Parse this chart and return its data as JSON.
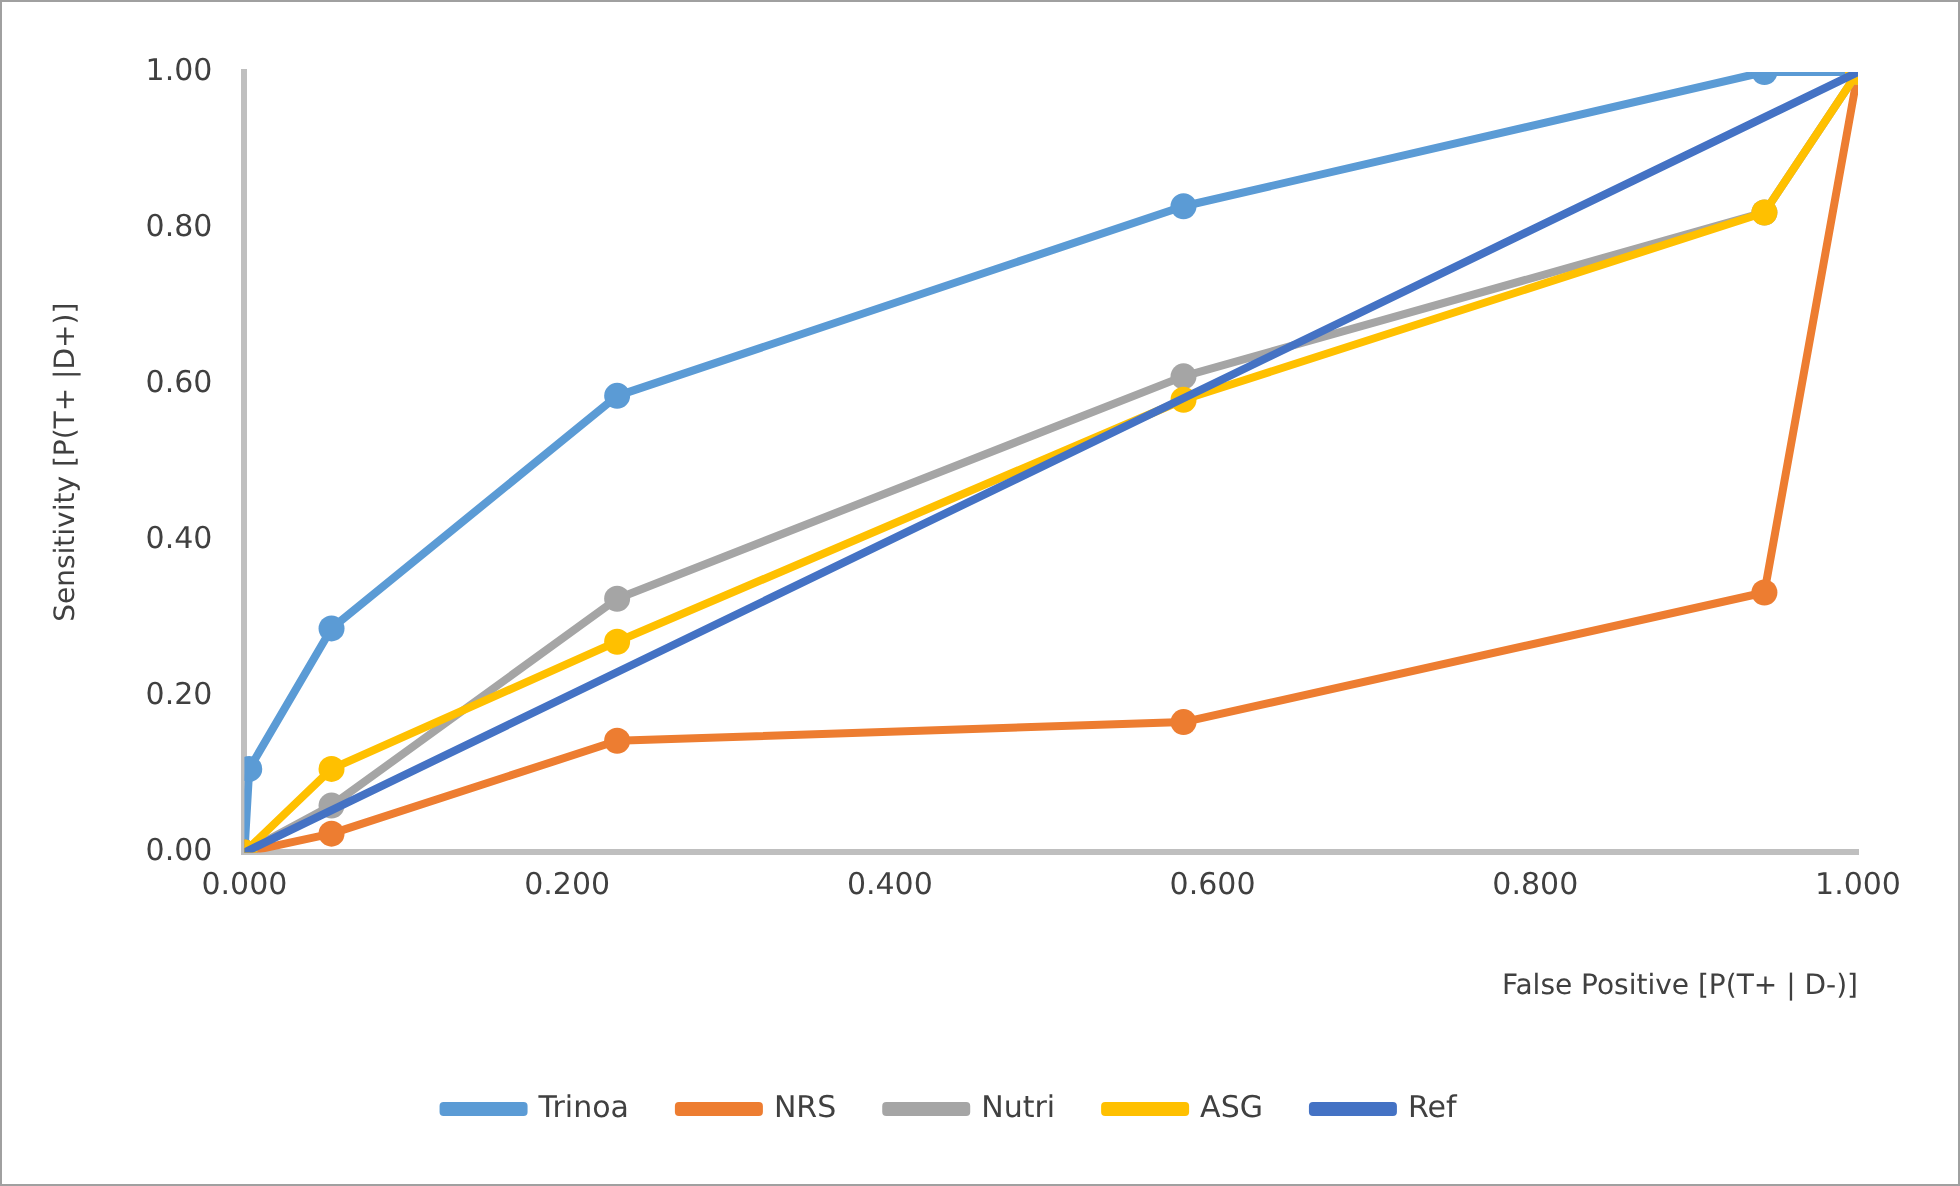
{
  "chart_data": {
    "type": "line",
    "xlabel": "False Positive [P(T+ | D-)]",
    "ylabel": "Sensitivity [P(T+ |D+)]",
    "xlim": [
      0,
      1
    ],
    "xticks": [
      {
        "value": 0,
        "label": "0.000"
      },
      {
        "value": 0.2,
        "label": "0.200"
      },
      {
        "value": 0.4,
        "label": "0.400"
      },
      {
        "value": 0.6,
        "label": "0.600"
      },
      {
        "value": 0.8,
        "label": "0.800"
      },
      {
        "value": 1,
        "label": "1.000"
      }
    ],
    "ylim": [
      0,
      1
    ],
    "yticks": [
      {
        "value": 0,
        "label": "0.00"
      },
      {
        "value": 0.2,
        "label": "0.20"
      },
      {
        "value": 0.4,
        "label": "0.40"
      },
      {
        "value": 0.6,
        "label": "0.60"
      },
      {
        "value": 0.8,
        "label": "0.80"
      },
      {
        "value": 1,
        "label": "1.00"
      }
    ],
    "grid": false,
    "legend": "bottom",
    "marker": "circle",
    "line_style": "solid",
    "series": [
      {
        "name": "Trinoa",
        "color": "#5b9bd5",
        "x": [
          0,
          0.003,
          0.054,
          0.231,
          0.582,
          0.942,
          1
        ],
        "values": [
          0,
          0.107,
          0.287,
          0.585,
          0.828,
          1,
          1
        ]
      },
      {
        "name": "NRS",
        "color": "#ed7d31",
        "x": [
          0,
          0.054,
          0.231,
          0.582,
          0.942,
          1
        ],
        "values": [
          0,
          0.024,
          0.143,
          0.167,
          0.333,
          1
        ]
      },
      {
        "name": "Nutri",
        "color": "#a5a5a5",
        "x": [
          0,
          0.054,
          0.231,
          0.582,
          0.942,
          1
        ],
        "values": [
          0,
          0.06,
          0.325,
          0.61,
          0.82,
          1
        ]
      },
      {
        "name": "ASG",
        "color": "#ffc000",
        "x": [
          0,
          0.054,
          0.231,
          0.582,
          0.942,
          1
        ],
        "values": [
          0,
          0.107,
          0.27,
          0.58,
          0.82,
          1
        ]
      },
      {
        "name": "Ref",
        "color": "#4472c4",
        "marker": "none",
        "x": [
          0,
          1
        ],
        "values": [
          0,
          1
        ]
      }
    ]
  }
}
